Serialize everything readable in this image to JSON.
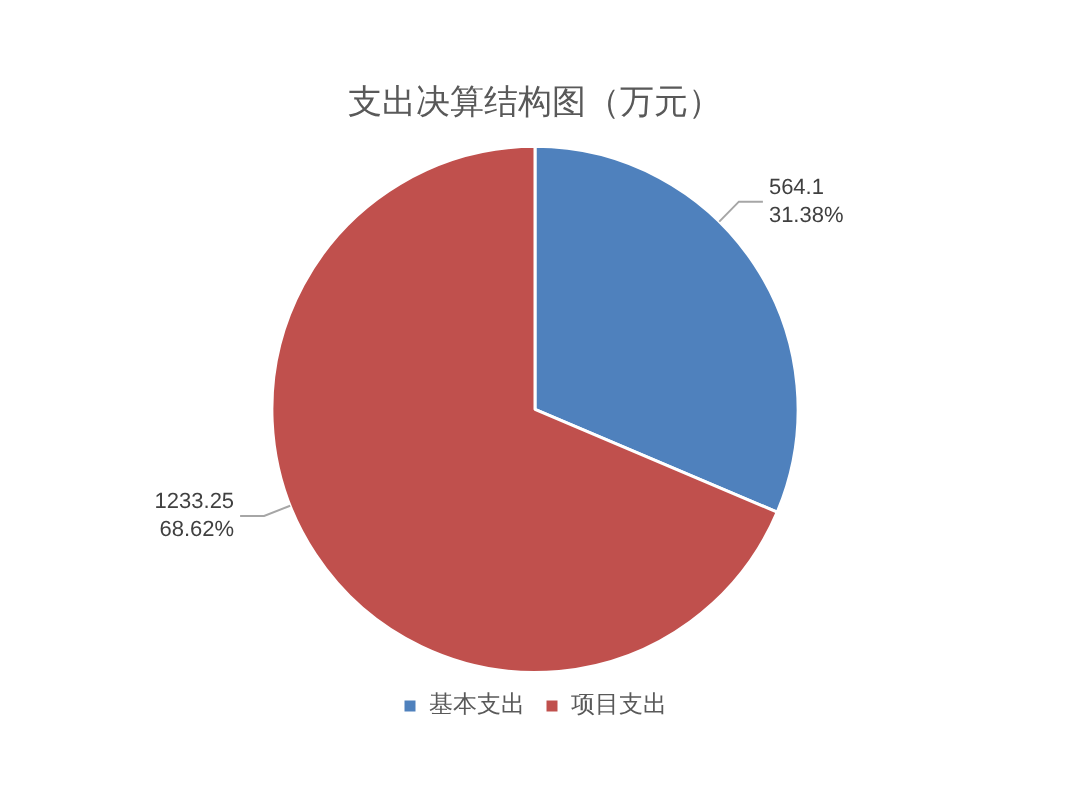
{
  "chart_data": {
    "type": "pie",
    "title": "支出决算结构图（万元）",
    "categories": [
      "基本支出",
      "项目支出"
    ],
    "values": [
      564.1,
      1233.25
    ],
    "colors": [
      "#4f81bd",
      "#c0504d"
    ],
    "value_labels": [
      "564.1\n31.38%",
      "1233.25\n68.62%"
    ],
    "legend": "bottom"
  }
}
